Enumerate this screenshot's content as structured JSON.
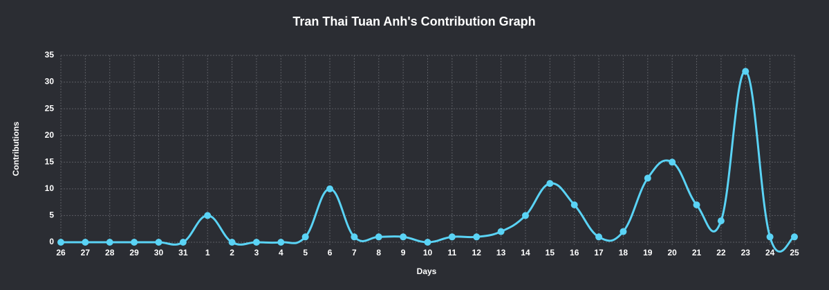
{
  "chart_data": {
    "type": "line",
    "title": "Tran Thai Tuan Anh's Contribution Graph",
    "x_label": "Days",
    "y_label": "Contributions",
    "categories": [
      "26",
      "27",
      "28",
      "29",
      "30",
      "31",
      "1",
      "2",
      "3",
      "4",
      "5",
      "6",
      "7",
      "8",
      "9",
      "10",
      "11",
      "12",
      "13",
      "14",
      "15",
      "16",
      "17",
      "18",
      "19",
      "20",
      "21",
      "22",
      "23",
      "24",
      "25"
    ],
    "values": [
      0,
      0,
      0,
      0,
      0,
      0,
      5,
      0,
      0,
      0,
      1,
      10,
      1,
      1,
      1,
      0,
      1,
      1,
      2,
      5,
      11,
      7,
      1,
      2,
      12,
      15,
      7,
      4,
      32,
      1,
      1
    ],
    "color": "#5ad3f5",
    "ylim": [
      0,
      35
    ],
    "yticks": [
      0,
      5,
      10,
      15,
      20,
      25,
      30,
      35
    ],
    "grid": true
  }
}
